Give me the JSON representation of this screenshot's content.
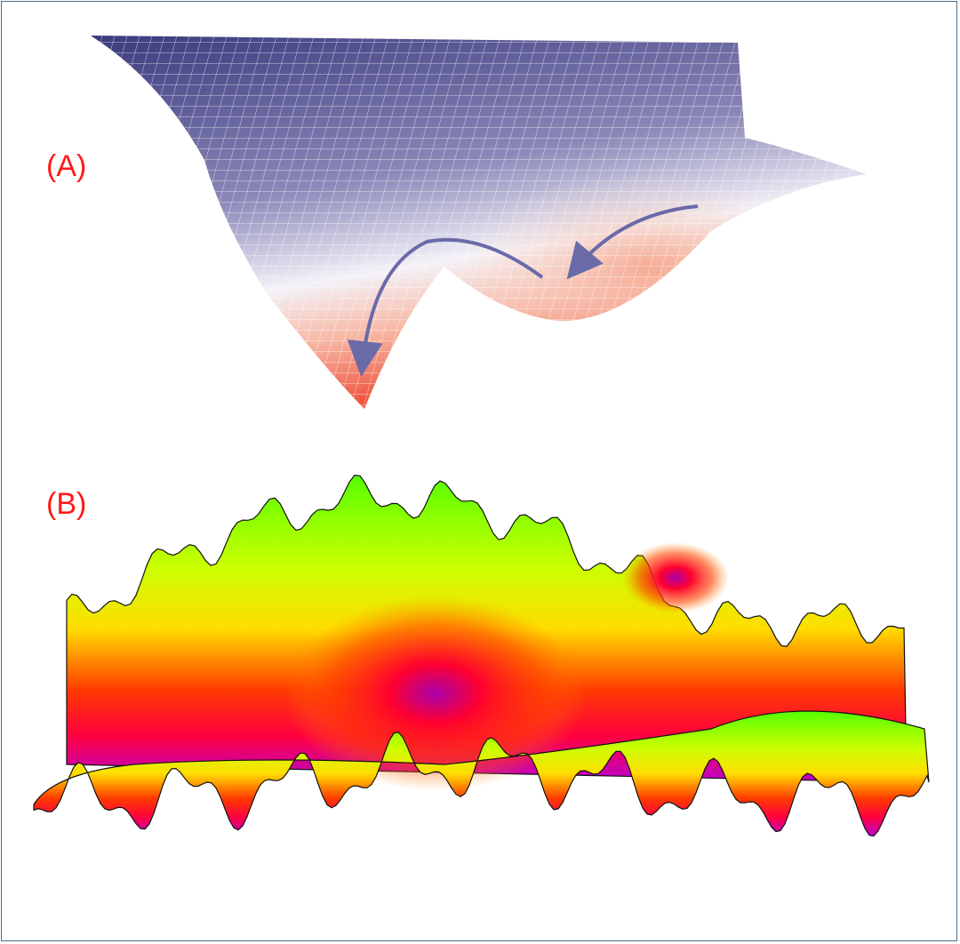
{
  "panels": [
    {
      "label": "(A)",
      "description_colors": {
        "high": "#3b3a7e",
        "mid": "#ffffff",
        "low": "#f0543a",
        "arrow": "#6a6aa8"
      }
    },
    {
      "label": "(B)",
      "description_colors": {
        "top": "#44ff00",
        "mid": "#ffee00",
        "low": "#ff1a00",
        "deep": "#cc00cc",
        "deepest": "#2020cc"
      }
    }
  ]
}
